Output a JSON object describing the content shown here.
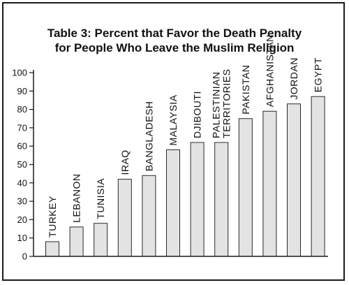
{
  "chart_data": {
    "type": "bar",
    "title_lines": [
      "Table 3: Percent that Favor the Death Penalty",
      "for People Who Leave the Muslim Religion"
    ],
    "categories": [
      [
        "TURKEY"
      ],
      [
        "LEBANON"
      ],
      [
        "TUNISIA"
      ],
      [
        "IRAQ"
      ],
      [
        "BANGLADESH"
      ],
      [
        "MALAYSIA"
      ],
      [
        "DJIBOUTI"
      ],
      [
        "PALESTINIAN",
        "TERRITORIES"
      ],
      [
        "PAKISTAN"
      ],
      [
        "AFGHANISTAN"
      ],
      [
        "JORDAN"
      ],
      [
        "EGYPT"
      ]
    ],
    "values": [
      8,
      16,
      18,
      42,
      44,
      58,
      62,
      62,
      75,
      79,
      83,
      87
    ],
    "ylim": [
      0,
      100
    ],
    "yticks": [
      0,
      10,
      20,
      30,
      40,
      50,
      60,
      70,
      80,
      90,
      100
    ],
    "grid": false,
    "bar_color": "#e3e3e3",
    "bar_edge_color": "#2a2a2a",
    "axis_color": "#1a1a1a"
  }
}
